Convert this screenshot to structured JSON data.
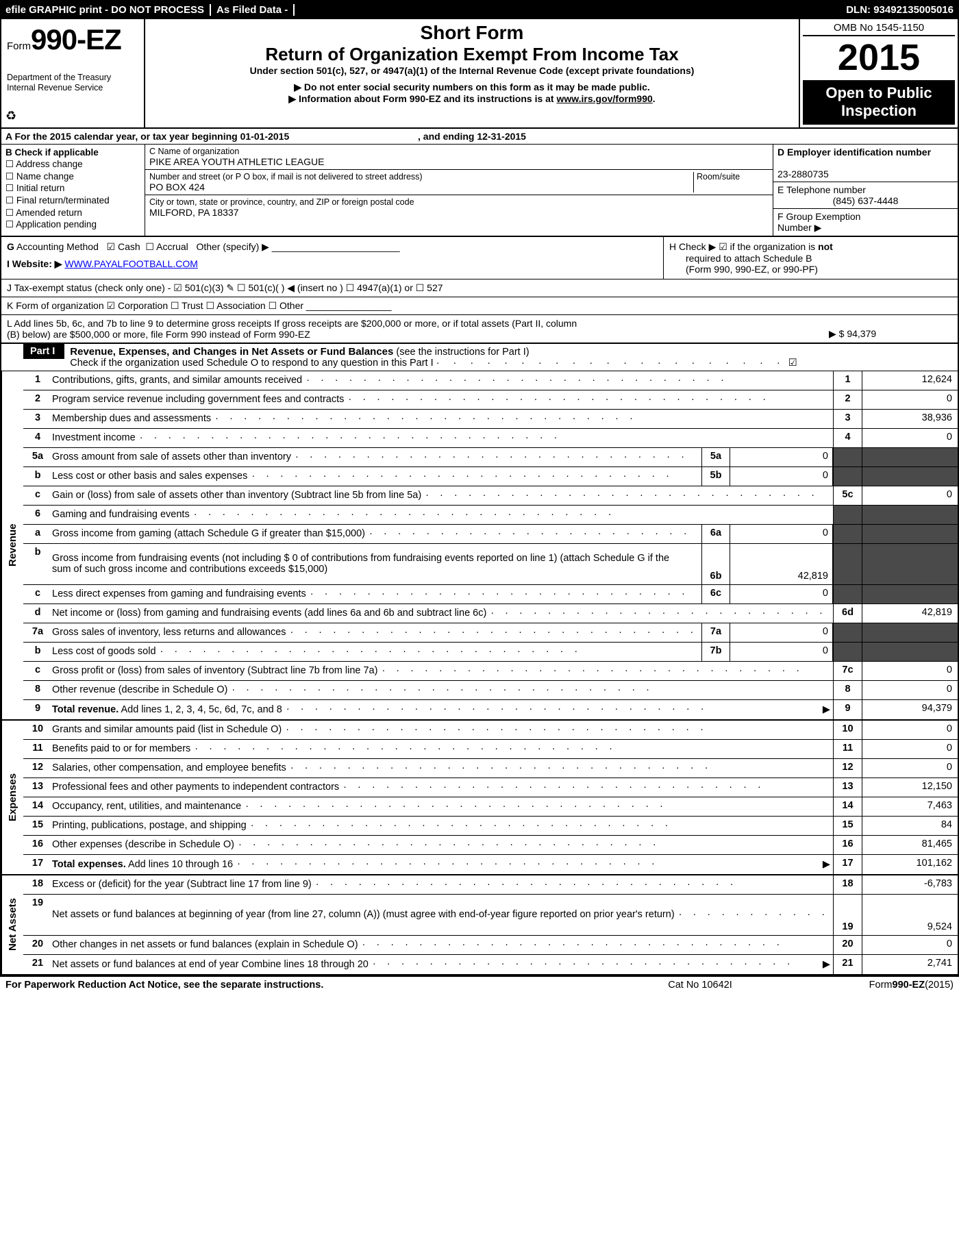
{
  "topbar": {
    "left": "efile GRAPHIC print - DO NOT PROCESS",
    "mid": "As Filed Data -",
    "dln": "DLN: 93492135005016"
  },
  "header": {
    "formPrefix": "Form",
    "formNum": "990-EZ",
    "dept1": "Department of the Treasury",
    "dept2": "Internal Revenue Service",
    "shortForm": "Short Form",
    "title": "Return of Organization Exempt From Income Tax",
    "sub": "Under section 501(c), 527, or 4947(a)(1) of the Internal Revenue Code (except private foundations)",
    "arrow1": "▶ Do not enter social security numbers on this form as it may be made public.",
    "arrow2pre": "▶ Information about Form 990-EZ and its instructions is at ",
    "arrow2link": "www.irs.gov/form990",
    "arrow2post": ".",
    "omb": "OMB No 1545-1150",
    "year": "2015",
    "open1": "Open to Public",
    "open2": "Inspection"
  },
  "rowA": {
    "text": "A  For the 2015 calendar year, or tax year beginning 01-01-2015",
    "end": ", and ending 12-31-2015"
  },
  "colB": {
    "title": "B  Check if applicable",
    "items": [
      "Address change",
      "Name change",
      "Initial return",
      "Final return/terminated",
      "Amended return",
      "Application pending"
    ]
  },
  "colC": {
    "nameLbl": "C Name of organization",
    "name": "PIKE AREA YOUTH ATHLETIC LEAGUE",
    "streetLbl": "Number and street (or P  O  box, if mail is not delivered to street address)",
    "roomLbl": "Room/suite",
    "street": "PO BOX 424",
    "cityLbl": "City or town, state or province, country, and ZIP or foreign postal code",
    "city": "MILFORD, PA  18337"
  },
  "colD": {
    "einLbl": "D Employer identification number",
    "ein": "23-2880735",
    "telLbl": "E Telephone number",
    "tel": "(845) 637-4448",
    "groupLbl": "F Group Exemption",
    "groupLbl2": "Number   ▶"
  },
  "lines": {
    "G": "G Accounting Method   ☑ Cash  ☐ Accrual   Other (specify) ▶",
    "Hpre": "H   Check ▶ ☑ if the organization is ",
    "Hnot": "not",
    "H2": "required to attach Schedule B",
    "H3": "(Form 990, 990-EZ, or 990-PF)",
    "Ipre": "I Website: ▶ ",
    "Ilink": "WWW.PAYALFOOTBALL.COM",
    "J": "J Tax-exempt status (check only one) - ☑ 501(c)(3) ✎  ☐ 501(c)(  ) ◀ (insert no ) ☐ 4947(a)(1) or ☐ 527",
    "K": "K Form of organization   ☑ Corporation  ☐ Trust  ☐ Association  ☐ Other",
    "L1": "L Add lines 5b, 6c, and 7b to line 9 to determine gross receipts  If gross receipts are $200,000 or more, or if total assets (Part II, column",
    "L2": "(B) below) are $500,000 or more, file Form 990 instead of Form 990-EZ",
    "Lval": "▶ $ 94,379"
  },
  "part1": {
    "tag": "Part I",
    "title": "Revenue, Expenses, and Changes in Net Assets or Fund Balances",
    "sub": " (see the instructions for Part I)",
    "check": "Check if the organization used Schedule O to respond to any question in this Part I",
    "checkMark": "☑"
  },
  "revenue": [
    {
      "n": "1",
      "d": "Contributions, gifts, grants, and similar amounts received",
      "rn": "1",
      "rv": "12,624"
    },
    {
      "n": "2",
      "d": "Program service revenue including government fees and contracts",
      "rn": "2",
      "rv": "0"
    },
    {
      "n": "3",
      "d": "Membership dues and assessments",
      "rn": "3",
      "rv": "38,936"
    },
    {
      "n": "4",
      "d": "Investment income",
      "rn": "4",
      "rv": "0"
    },
    {
      "n": "5a",
      "d": "Gross amount from sale of assets other than inventory",
      "mn": "5a",
      "mv": "0",
      "gray": true
    },
    {
      "n": "b",
      "d": "Less  cost or other basis and sales expenses",
      "mn": "5b",
      "mv": "0",
      "gray": true
    },
    {
      "n": "c",
      "d": "Gain or (loss) from sale of assets other than inventory (Subtract line 5b from line 5a)",
      "rn": "5c",
      "rv": "0"
    },
    {
      "n": "6",
      "d": "Gaming and fundraising events",
      "gray": true,
      "noval": true
    },
    {
      "n": "a",
      "d": "Gross income from gaming (attach Schedule G if greater than $15,000)",
      "mn": "6a",
      "mv": "0",
      "gray": true
    },
    {
      "n": "b",
      "d": "Gross income from fundraising events (not including $  0               of contributions from fundraising events reported on line 1) (attach Schedule G if the sum of such gross income and contributions exceeds $15,000)",
      "mn": "6b",
      "mv": "42,819",
      "gray": true,
      "tall": true
    },
    {
      "n": "c",
      "d": "Less  direct expenses from gaming and fundraising events",
      "mn": "6c",
      "mv": "0",
      "gray": true
    },
    {
      "n": "d",
      "d": "Net income or (loss) from gaming and fundraising events (add lines 6a and 6b and subtract line 6c)",
      "rn": "6d",
      "rv": "42,819"
    },
    {
      "n": "7a",
      "d": "Gross sales of inventory, less returns and allowances",
      "mn": "7a",
      "mv": "0",
      "gray": true
    },
    {
      "n": "b",
      "d": "Less  cost of goods sold",
      "mn": "7b",
      "mv": "0",
      "gray": true
    },
    {
      "n": "c",
      "d": "Gross profit or (loss) from sales of inventory (Subtract line 7b from line 7a)",
      "rn": "7c",
      "rv": "0"
    },
    {
      "n": "8",
      "d": "Other revenue (describe in Schedule O)",
      "rn": "8",
      "rv": "0"
    },
    {
      "n": "9",
      "d": "Total revenue. Add lines 1, 2, 3, 4, 5c, 6d, 7c, and 8",
      "rn": "9",
      "rv": "94,379",
      "bold": true,
      "arrow": true
    }
  ],
  "expenses": [
    {
      "n": "10",
      "d": "Grants and similar amounts paid (list in Schedule O)",
      "rn": "10",
      "rv": "0"
    },
    {
      "n": "11",
      "d": "Benefits paid to or for members",
      "rn": "11",
      "rv": "0"
    },
    {
      "n": "12",
      "d": "Salaries, other compensation, and employee benefits",
      "rn": "12",
      "rv": "0"
    },
    {
      "n": "13",
      "d": "Professional fees and other payments to independent contractors",
      "rn": "13",
      "rv": "12,150"
    },
    {
      "n": "14",
      "d": "Occupancy, rent, utilities, and maintenance",
      "rn": "14",
      "rv": "7,463"
    },
    {
      "n": "15",
      "d": "Printing, publications, postage, and shipping",
      "rn": "15",
      "rv": "84"
    },
    {
      "n": "16",
      "d": "Other expenses (describe in Schedule O)",
      "rn": "16",
      "rv": "81,465"
    },
    {
      "n": "17",
      "d": "Total expenses. Add lines 10 through 16",
      "rn": "17",
      "rv": "101,162",
      "bold": true,
      "arrow": true
    }
  ],
  "netassets": [
    {
      "n": "18",
      "d": "Excess or (deficit) for the year (Subtract line 17 from line 9)",
      "rn": "18",
      "rv": "-6,783"
    },
    {
      "n": "19",
      "d": "Net assets or fund balances at beginning of year (from line 27, column (A)) (must agree with end-of-year figure reported on prior year's return)",
      "rn": "19",
      "rv": "9,524",
      "tall": true,
      "grayTop": true
    },
    {
      "n": "20",
      "d": "Other changes in net assets or fund balances (explain in Schedule O)",
      "rn": "20",
      "rv": "0"
    },
    {
      "n": "21",
      "d": "Net assets or fund balances at end of year  Combine lines 18 through 20",
      "rn": "21",
      "rv": "2,741",
      "arrow": true
    }
  ],
  "footer": {
    "left": "For Paperwork Reduction Act Notice, see the separate instructions.",
    "mid": "Cat No 10642I",
    "rightPre": "Form",
    "rightBold": "990-EZ",
    "rightPost": "(2015)"
  },
  "sections": {
    "revenue": "Revenue",
    "expenses": "Expenses",
    "net": "Net Assets"
  }
}
